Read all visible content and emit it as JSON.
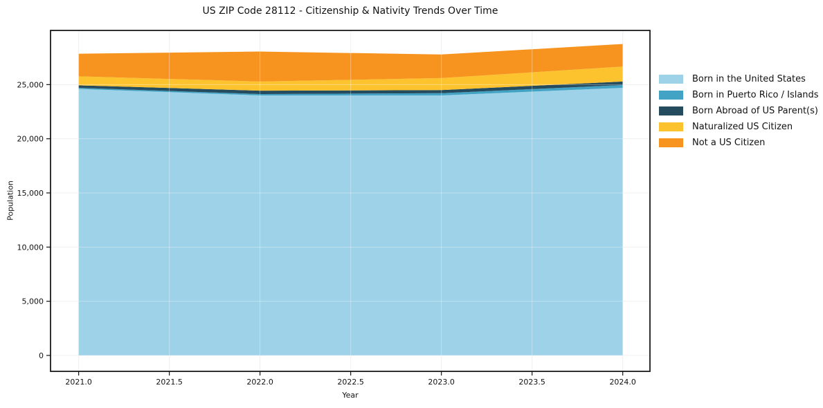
{
  "title": "US ZIP Code 28112 - Citizenship & Nativity Trends Over Time",
  "chart_data": {
    "type": "area",
    "stacked": true,
    "title": "US ZIP Code 28112 - Citizenship & Nativity Trends Over Time",
    "xlabel": "Year",
    "ylabel": "Population",
    "x": [
      2021,
      2022,
      2023,
      2024
    ],
    "xlim": [
      2020.845,
      2024.15
    ],
    "ylim": [
      -1470,
      30000
    ],
    "grid": true,
    "legend_position": "right of plot",
    "xticks": {
      "values": [
        2021.0,
        2021.5,
        2022.0,
        2022.5,
        2023.0,
        2023.5,
        2024.0
      ],
      "labels": [
        "2021.0",
        "2021.5",
        "2022.0",
        "2022.5",
        "2023.0",
        "2023.5",
        "2024.0"
      ]
    },
    "yticks": {
      "values": [
        0,
        5000,
        10000,
        15000,
        20000,
        25000
      ],
      "labels": [
        "0",
        "5,000",
        "10,000",
        "15,000",
        "20,000",
        "25,000"
      ]
    },
    "series": [
      {
        "name": "Born in the United States",
        "color": "#9ed2e8",
        "values": [
          24600,
          24000,
          24000,
          24700
        ]
      },
      {
        "name": "Born in Puerto Rico / Islands",
        "color": "#42a3c4",
        "values": [
          100,
          130,
          210,
          260
        ]
      },
      {
        "name": "Born Abroad of US Parent(s)",
        "color": "#254b5e",
        "values": [
          230,
          310,
          280,
          320
        ]
      },
      {
        "name": "Naturalized US Citizen",
        "color": "#fdc32f",
        "values": [
          830,
          840,
          1110,
          1380
        ]
      },
      {
        "name": "Not a US Citizen",
        "color": "#f7941f",
        "values": [
          2090,
          2770,
          2180,
          2090
        ]
      }
    ],
    "totals": [
      27850,
      28050,
      27780,
      28750
    ]
  },
  "style_colors": {
    "spine": "#1a1a1a",
    "grid_under": "#e8e8e8",
    "grid_over": "rgba(255,255,255,0.35)",
    "tick": "#111111"
  }
}
